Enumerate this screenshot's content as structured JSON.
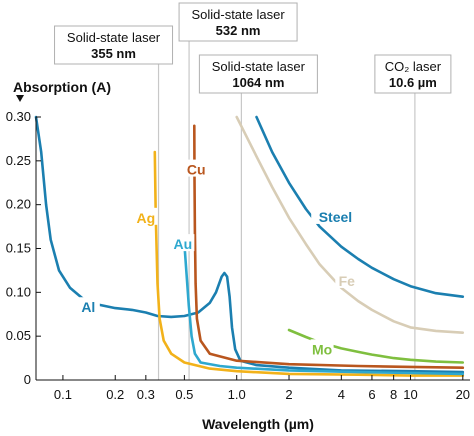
{
  "chart_data": {
    "type": "line",
    "title": "",
    "ylabel": "Absorption (A)",
    "xlabel": "Wavelength (µm)",
    "xscale": "log",
    "xlim": [
      0.07,
      22
    ],
    "ylim": [
      0,
      0.3
    ],
    "grid": false,
    "x_ticks": [
      {
        "value": 0.1,
        "label": "0.1"
      },
      {
        "value": 0.2,
        "label": "0.2"
      },
      {
        "value": 0.3,
        "label": "0.3"
      },
      {
        "value": 0.5,
        "label": "0.5"
      },
      {
        "value": 1,
        "label": "1.0"
      },
      {
        "value": 2,
        "label": "2"
      },
      {
        "value": 4,
        "label": "4"
      },
      {
        "value": 6,
        "label": "6"
      },
      {
        "value": 8,
        "label": "8"
      },
      {
        "value": 10,
        "label": "10"
      },
      {
        "value": 20,
        "label": "20"
      }
    ],
    "y_ticks": [
      {
        "value": 0,
        "label": "0"
      },
      {
        "value": 0.05,
        "label": "0.05"
      },
      {
        "value": 0.1,
        "label": "0.10"
      },
      {
        "value": 0.15,
        "label": "0.15"
      },
      {
        "value": 0.2,
        "label": "0.20"
      },
      {
        "value": 0.25,
        "label": "0.25"
      },
      {
        "value": 0.3,
        "label": "0.30"
      }
    ],
    "lasers": [
      {
        "name": "Solid-state laser",
        "wavelength_label": "355 nm",
        "x": 0.355
      },
      {
        "name": "Solid-state laser",
        "wavelength_label": "532 nm",
        "x": 0.532
      },
      {
        "name": "Solid-state laser",
        "wavelength_label": "1064 nm",
        "x": 1.064
      },
      {
        "name": "CO₂ laser",
        "wavelength_label": "10.6 µm",
        "x": 10.6
      }
    ],
    "series": [
      {
        "name": "Al",
        "color": "#1b7fb0",
        "points": [
          [
            0.07,
            0.3
          ],
          [
            0.075,
            0.26
          ],
          [
            0.08,
            0.2
          ],
          [
            0.085,
            0.16
          ],
          [
            0.095,
            0.125
          ],
          [
            0.11,
            0.105
          ],
          [
            0.13,
            0.093
          ],
          [
            0.16,
            0.086
          ],
          [
            0.2,
            0.082
          ],
          [
            0.25,
            0.08
          ],
          [
            0.3,
            0.077
          ],
          [
            0.35,
            0.073
          ],
          [
            0.42,
            0.072
          ],
          [
            0.5,
            0.073
          ],
          [
            0.6,
            0.077
          ],
          [
            0.7,
            0.088
          ],
          [
            0.76,
            0.1
          ],
          [
            0.82,
            0.118
          ],
          [
            0.85,
            0.122
          ],
          [
            0.88,
            0.118
          ],
          [
            0.91,
            0.095
          ],
          [
            0.94,
            0.06
          ],
          [
            0.98,
            0.035
          ],
          [
            1.05,
            0.022
          ],
          [
            1.3,
            0.017
          ],
          [
            2,
            0.014
          ],
          [
            4,
            0.011
          ],
          [
            10,
            0.01
          ],
          [
            20,
            0.009
          ]
        ]
      },
      {
        "name": "Ag",
        "color": "#f2b21a",
        "points": [
          [
            0.338,
            0.26
          ],
          [
            0.342,
            0.19
          ],
          [
            0.35,
            0.11
          ],
          [
            0.36,
            0.07
          ],
          [
            0.38,
            0.045
          ],
          [
            0.42,
            0.03
          ],
          [
            0.5,
            0.02
          ],
          [
            0.7,
            0.013
          ],
          [
            1,
            0.01
          ],
          [
            2,
            0.007
          ],
          [
            5,
            0.006
          ],
          [
            10,
            0.005
          ],
          [
            20,
            0.005
          ]
        ]
      },
      {
        "name": "Au",
        "color": "#2ea8cf",
        "points": [
          [
            0.5,
            0.155
          ],
          [
            0.515,
            0.12
          ],
          [
            0.53,
            0.085
          ],
          [
            0.55,
            0.05
          ],
          [
            0.575,
            0.03
          ],
          [
            0.62,
            0.02
          ],
          [
            0.8,
            0.016
          ],
          [
            1,
            0.014
          ],
          [
            2,
            0.011
          ],
          [
            5,
            0.009
          ],
          [
            10,
            0.008
          ],
          [
            20,
            0.007
          ]
        ]
      },
      {
        "name": "Cu",
        "color": "#b9561e",
        "points": [
          [
            0.57,
            0.29
          ],
          [
            0.572,
            0.23
          ],
          [
            0.575,
            0.17
          ],
          [
            0.58,
            0.11
          ],
          [
            0.59,
            0.07
          ],
          [
            0.62,
            0.045
          ],
          [
            0.7,
            0.03
          ],
          [
            1,
            0.022
          ],
          [
            2,
            0.018
          ],
          [
            5,
            0.016
          ],
          [
            10,
            0.015
          ],
          [
            20,
            0.014
          ]
        ]
      },
      {
        "name": "Steel",
        "color": "#1b7fb0",
        "points": [
          [
            1.3,
            0.3
          ],
          [
            1.6,
            0.26
          ],
          [
            2,
            0.225
          ],
          [
            2.5,
            0.195
          ],
          [
            3,
            0.175
          ],
          [
            4,
            0.152
          ],
          [
            5,
            0.138
          ],
          [
            6,
            0.128
          ],
          [
            8,
            0.115
          ],
          [
            10,
            0.107
          ],
          [
            14,
            0.099
          ],
          [
            20,
            0.095
          ]
        ]
      },
      {
        "name": "Fe",
        "color": "#d8cdb6",
        "points": [
          [
            1.0,
            0.3
          ],
          [
            1.3,
            0.255
          ],
          [
            1.6,
            0.22
          ],
          [
            2,
            0.185
          ],
          [
            2.5,
            0.155
          ],
          [
            3,
            0.132
          ],
          [
            4,
            0.105
          ],
          [
            5,
            0.09
          ],
          [
            6,
            0.08
          ],
          [
            8,
            0.067
          ],
          [
            10,
            0.06
          ],
          [
            14,
            0.056
          ],
          [
            20,
            0.054
          ]
        ]
      },
      {
        "name": "Mo",
        "color": "#7fbf3f",
        "points": [
          [
            2,
            0.057
          ],
          [
            2.5,
            0.049
          ],
          [
            3,
            0.043
          ],
          [
            4,
            0.036
          ],
          [
            5,
            0.032
          ],
          [
            6,
            0.029
          ],
          [
            8,
            0.025
          ],
          [
            10,
            0.023
          ],
          [
            14,
            0.021
          ],
          [
            20,
            0.02
          ]
        ]
      }
    ],
    "labels": [
      {
        "text": "Al",
        "series": "Al",
        "x": 0.14,
        "y": 0.083
      },
      {
        "text": "Ag",
        "series": "Ag",
        "x": 0.3,
        "y": 0.185
      },
      {
        "text": "Au",
        "series": "Au",
        "x": 0.49,
        "y": 0.155
      },
      {
        "text": "Cu",
        "series": "Cu",
        "x": 0.585,
        "y": 0.24
      },
      {
        "text": "Steel",
        "series": "Steel",
        "x": 3.7,
        "y": 0.186
      },
      {
        "text": "Fe",
        "series": "Fe",
        "x": 4.3,
        "y": 0.113
      },
      {
        "text": "Mo",
        "series": "Mo",
        "x": 3.1,
        "y": 0.035
      }
    ]
  }
}
